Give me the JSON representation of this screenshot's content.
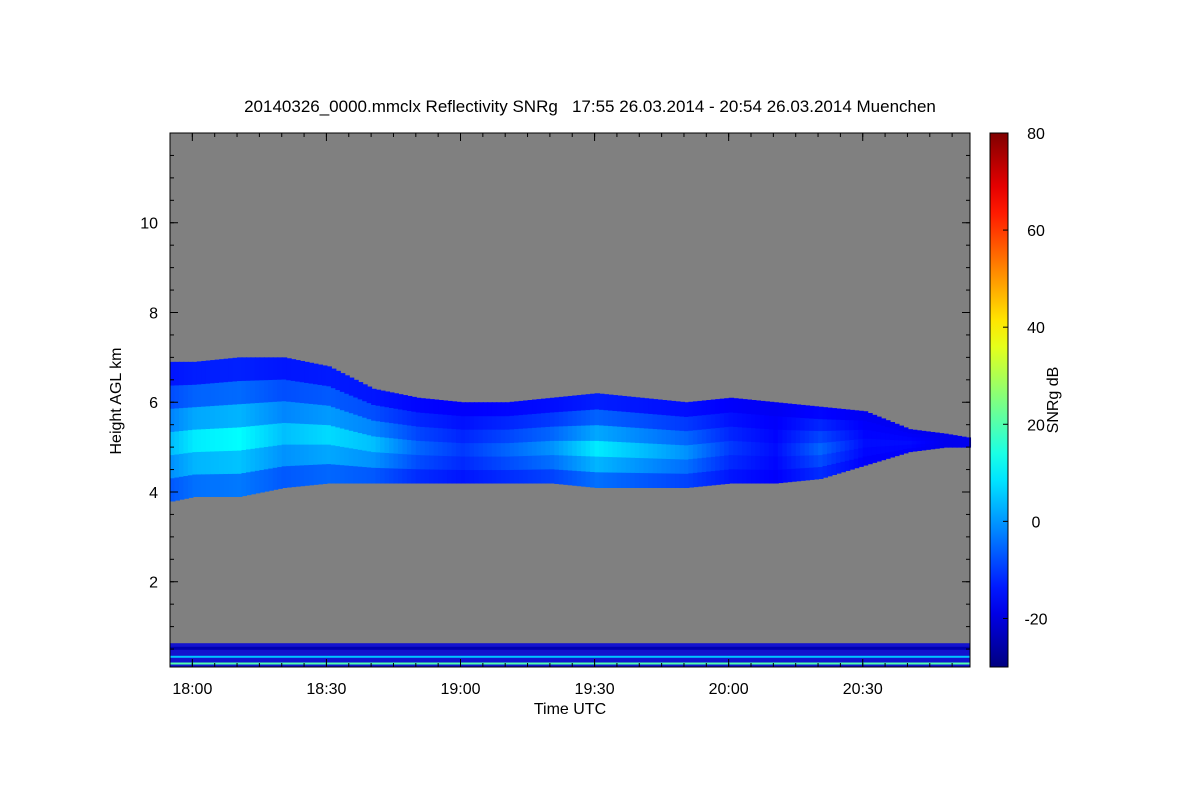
{
  "chart_data": {
    "type": "heatmap",
    "title": "20140326_0000.mmclx Reflectivity SNRg   17:55 26.03.2014 - 20:54 26.03.2014 Muenchen",
    "xlabel": "Time UTC",
    "ylabel": "Height AGL km",
    "x_ticks": [
      "18:00",
      "18:30",
      "19:00",
      "19:30",
      "20:00",
      "20:30"
    ],
    "xlim_minutes_utc": [
      1075,
      1254
    ],
    "ylim_km": [
      0.1,
      12.0
    ],
    "y_ticks": [
      2,
      4,
      6,
      8,
      10
    ],
    "background_color": "#808080",
    "colorbar": {
      "label": "SNRg dB",
      "range": [
        -30,
        80
      ],
      "ticks": [
        -20,
        0,
        20,
        40,
        60,
        80
      ],
      "colormap": "jet"
    },
    "cloud_layer": {
      "description_values": {
        "x_minutes": [
          1075,
          1080,
          1090,
          1100,
          1110,
          1120,
          1130,
          1140,
          1150,
          1160,
          1170,
          1180,
          1190,
          1200,
          1210,
          1220,
          1230,
          1240,
          1248,
          1254
        ],
        "top_km": [
          6.9,
          6.9,
          7.0,
          7.0,
          6.8,
          6.3,
          6.1,
          6.0,
          6.0,
          6.1,
          6.2,
          6.1,
          6.0,
          6.1,
          6.0,
          5.9,
          5.8,
          5.4,
          5.3,
          5.2
        ],
        "base_km": [
          3.8,
          3.9,
          3.9,
          4.1,
          4.2,
          4.2,
          4.2,
          4.2,
          4.2,
          4.2,
          4.1,
          4.1,
          4.1,
          4.2,
          4.2,
          4.3,
          4.6,
          4.9,
          5.0,
          5.0
        ],
        "peak_snr_db": [
          5,
          10,
          12,
          5,
          8,
          5,
          -5,
          -10,
          -5,
          0,
          10,
          5,
          0,
          -10,
          -15,
          -5,
          -15,
          -15,
          -18,
          -18
        ]
      }
    },
    "clutter_layer_top_km": 0.9
  }
}
